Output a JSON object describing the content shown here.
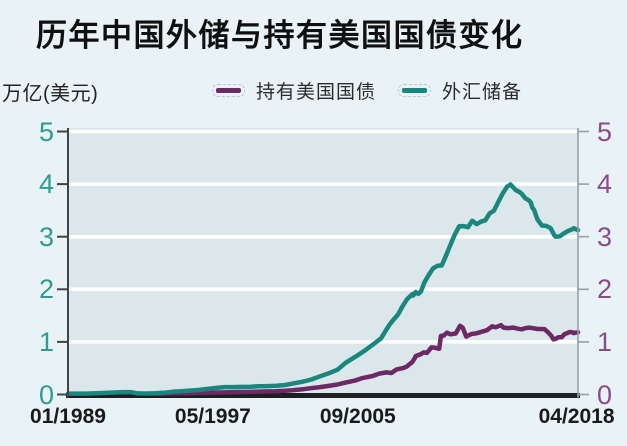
{
  "title": "历年中国外储与持有美国国债变化",
  "y_axis_unit": "万亿(美元)",
  "legend": [
    {
      "label": "持有美国国债",
      "color": "#6d2963"
    },
    {
      "label": "外汇储备",
      "color": "#19877d"
    }
  ],
  "colors": {
    "page_bg": "#e9f2f6",
    "plot_bg": "#dce7eb",
    "grid": "#ffffff",
    "teal_line": "#19877d",
    "purple_line": "#6d2963",
    "left_axis_labels": "#2f9b90",
    "right_axis_labels": "#8a4b8a",
    "left_axis": "#3f4447",
    "right_axis": "#97a0a4",
    "bottom_axis": "#1d1f20",
    "x_labels": "#1a1a1a"
  },
  "chart_data": {
    "type": "line",
    "title": "历年中国外储与持有美国国债变化",
    "ylabel": "万亿(美元)",
    "ylim": [
      0,
      5
    ],
    "x_range_decimal_years": [
      1989.0,
      2018.333
    ],
    "grid": "horizontal-white",
    "legend_position": "top",
    "y_ticks": [
      {
        "v": 5,
        "label": "5"
      },
      {
        "v": 4,
        "label": "4"
      },
      {
        "v": 3,
        "label": "3"
      },
      {
        "v": 2,
        "label": "2"
      },
      {
        "v": 1,
        "label": "1"
      },
      {
        "v": 0,
        "label": "0"
      }
    ],
    "x_ticks": [
      {
        "t": 1989.0,
        "label": "01/1989",
        "bold": false
      },
      {
        "t": 1997.333,
        "label": "05/1997",
        "bold": false
      },
      {
        "t": 2005.667,
        "label": "09/2005",
        "bold": false
      },
      {
        "t": 2018.25,
        "label": "04/2018",
        "bold": true
      }
    ],
    "series": [
      {
        "name": "持有美国国债",
        "color": "#6d2963",
        "points": [
          [
            1994.0,
            0.017
          ],
          [
            1995.0,
            0.021
          ],
          [
            1996.0,
            0.025
          ],
          [
            1997.0,
            0.032
          ],
          [
            1998.0,
            0.04
          ],
          [
            1999.0,
            0.048
          ],
          [
            2000.0,
            0.055
          ],
          [
            2000.9,
            0.06
          ],
          [
            2001.5,
            0.07
          ],
          [
            2001.9,
            0.079
          ],
          [
            2002.5,
            0.098
          ],
          [
            2002.9,
            0.118
          ],
          [
            2003.5,
            0.14
          ],
          [
            2003.9,
            0.159
          ],
          [
            2004.5,
            0.19
          ],
          [
            2004.9,
            0.223
          ],
          [
            2005.5,
            0.265
          ],
          [
            2005.9,
            0.31
          ],
          [
            2006.5,
            0.35
          ],
          [
            2006.9,
            0.397
          ],
          [
            2007.3,
            0.42
          ],
          [
            2007.6,
            0.408
          ],
          [
            2007.9,
            0.478
          ],
          [
            2008.3,
            0.505
          ],
          [
            2008.5,
            0.535
          ],
          [
            2008.8,
            0.618
          ],
          [
            2008.95,
            0.696
          ],
          [
            2009.0,
            0.73
          ],
          [
            2009.3,
            0.768
          ],
          [
            2009.45,
            0.801
          ],
          [
            2009.65,
            0.79
          ],
          [
            2009.9,
            0.895
          ],
          [
            2010.1,
            0.889
          ],
          [
            2010.35,
            0.868
          ],
          [
            2010.45,
            1.112
          ],
          [
            2010.6,
            1.12
          ],
          [
            2010.8,
            1.175
          ],
          [
            2011.0,
            1.145
          ],
          [
            2011.3,
            1.16
          ],
          [
            2011.55,
            1.307
          ],
          [
            2011.7,
            1.27
          ],
          [
            2011.9,
            1.1
          ],
          [
            2012.2,
            1.15
          ],
          [
            2012.5,
            1.164
          ],
          [
            2012.9,
            1.203
          ],
          [
            2013.1,
            1.223
          ],
          [
            2013.4,
            1.297
          ],
          [
            2013.6,
            1.277
          ],
          [
            2013.9,
            1.317
          ],
          [
            2014.05,
            1.272
          ],
          [
            2014.3,
            1.263
          ],
          [
            2014.6,
            1.271
          ],
          [
            2014.9,
            1.25
          ],
          [
            2015.1,
            1.239
          ],
          [
            2015.3,
            1.261
          ],
          [
            2015.5,
            1.271
          ],
          [
            2015.8,
            1.258
          ],
          [
            2016.0,
            1.246
          ],
          [
            2016.2,
            1.245
          ],
          [
            2016.4,
            1.244
          ],
          [
            2016.6,
            1.185
          ],
          [
            2016.8,
            1.116
          ],
          [
            2016.92,
            1.049
          ],
          [
            2017.05,
            1.059
          ],
          [
            2017.2,
            1.088
          ],
          [
            2017.4,
            1.092
          ],
          [
            2017.55,
            1.147
          ],
          [
            2017.7,
            1.166
          ],
          [
            2017.85,
            1.189
          ],
          [
            2018.0,
            1.185
          ],
          [
            2018.1,
            1.168
          ],
          [
            2018.2,
            1.177
          ],
          [
            2018.333,
            1.182
          ]
        ]
      },
      {
        "name": "外汇储备",
        "color": "#19877d",
        "points": [
          [
            1989.0,
            0.017
          ],
          [
            1990.0,
            0.018
          ],
          [
            1991.0,
            0.029
          ],
          [
            1992.0,
            0.043
          ],
          [
            1992.6,
            0.045
          ],
          [
            1993.0,
            0.02
          ],
          [
            1993.5,
            0.019
          ],
          [
            1994.0,
            0.022
          ],
          [
            1994.5,
            0.033
          ],
          [
            1995.0,
            0.052
          ],
          [
            1995.5,
            0.061
          ],
          [
            1996.0,
            0.074
          ],
          [
            1996.5,
            0.086
          ],
          [
            1997.0,
            0.105
          ],
          [
            1997.4,
            0.121
          ],
          [
            1998.0,
            0.14
          ],
          [
            1998.5,
            0.141
          ],
          [
            1999.0,
            0.145
          ],
          [
            1999.5,
            0.148
          ],
          [
            2000.0,
            0.155
          ],
          [
            2000.5,
            0.159
          ],
          [
            2001.0,
            0.166
          ],
          [
            2001.5,
            0.181
          ],
          [
            2002.0,
            0.212
          ],
          [
            2002.5,
            0.243
          ],
          [
            2003.0,
            0.286
          ],
          [
            2003.5,
            0.346
          ],
          [
            2004.0,
            0.403
          ],
          [
            2004.5,
            0.471
          ],
          [
            2005.0,
            0.61
          ],
          [
            2005.5,
            0.711
          ],
          [
            2006.0,
            0.819
          ],
          [
            2006.5,
            0.941
          ],
          [
            2007.0,
            1.066
          ],
          [
            2007.25,
            1.202
          ],
          [
            2007.5,
            1.333
          ],
          [
            2007.75,
            1.434
          ],
          [
            2008.0,
            1.528
          ],
          [
            2008.25,
            1.682
          ],
          [
            2008.5,
            1.809
          ],
          [
            2008.8,
            1.906
          ],
          [
            2008.85,
            1.88
          ],
          [
            2009.0,
            1.946
          ],
          [
            2009.15,
            1.912
          ],
          [
            2009.3,
            1.954
          ],
          [
            2009.5,
            2.132
          ],
          [
            2009.75,
            2.273
          ],
          [
            2010.0,
            2.399
          ],
          [
            2010.25,
            2.447
          ],
          [
            2010.5,
            2.454
          ],
          [
            2010.75,
            2.648
          ],
          [
            2011.0,
            2.847
          ],
          [
            2011.25,
            3.045
          ],
          [
            2011.5,
            3.197
          ],
          [
            2011.75,
            3.202
          ],
          [
            2012.0,
            3.181
          ],
          [
            2012.25,
            3.305
          ],
          [
            2012.5,
            3.24
          ],
          [
            2012.75,
            3.285
          ],
          [
            2013.0,
            3.312
          ],
          [
            2013.25,
            3.443
          ],
          [
            2013.5,
            3.497
          ],
          [
            2013.75,
            3.662
          ],
          [
            2014.0,
            3.821
          ],
          [
            2014.25,
            3.948
          ],
          [
            2014.45,
            3.993
          ],
          [
            2014.75,
            3.888
          ],
          [
            2015.0,
            3.843
          ],
          [
            2015.1,
            3.813
          ],
          [
            2015.3,
            3.73
          ],
          [
            2015.5,
            3.694
          ],
          [
            2015.62,
            3.651
          ],
          [
            2015.7,
            3.557
          ],
          [
            2015.8,
            3.514
          ],
          [
            2016.0,
            3.33
          ],
          [
            2016.25,
            3.213
          ],
          [
            2016.5,
            3.205
          ],
          [
            2016.75,
            3.166
          ],
          [
            2017.0,
            3.011
          ],
          [
            2017.08,
            2.998
          ],
          [
            2017.3,
            3.009
          ],
          [
            2017.5,
            3.057
          ],
          [
            2017.75,
            3.109
          ],
          [
            2018.0,
            3.14
          ],
          [
            2018.1,
            3.161
          ],
          [
            2018.2,
            3.143
          ],
          [
            2018.333,
            3.125
          ]
        ]
      }
    ]
  }
}
